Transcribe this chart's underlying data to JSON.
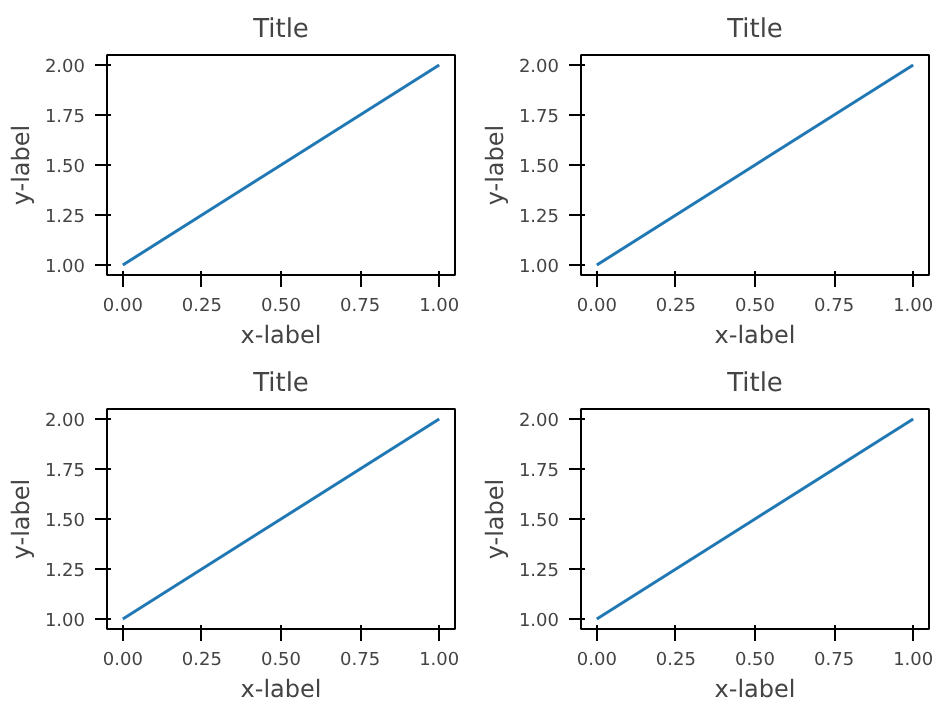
{
  "chart_data": [
    {
      "type": "line",
      "title": "Title",
      "xlabel": "x-label",
      "ylabel": "y-label",
      "x": [
        0,
        0.5,
        1
      ],
      "series": [
        {
          "color": "#1f77b4",
          "values": [
            1,
            1.5,
            2
          ]
        }
      ],
      "xlim": [
        -0.05,
        1.05
      ],
      "ylim": [
        0.95,
        2.05
      ],
      "xticks": [
        {
          "value": 0,
          "label": "0.00"
        },
        {
          "value": 0.25,
          "label": "0.25"
        },
        {
          "value": 0.5,
          "label": "0.50"
        },
        {
          "value": 0.75,
          "label": "0.75"
        },
        {
          "value": 1,
          "label": "1.00"
        }
      ],
      "yticks": [
        {
          "value": 1,
          "label": "1.00"
        },
        {
          "value": 1.25,
          "label": "1.25"
        },
        {
          "value": 1.5,
          "label": "1.50"
        },
        {
          "value": 1.75,
          "label": "1.75"
        },
        {
          "value": 2,
          "label": "2.00"
        }
      ],
      "grid": false
    },
    {
      "type": "line",
      "title": "Title",
      "xlabel": "x-label",
      "ylabel": "y-label",
      "x": [
        0,
        0.5,
        1
      ],
      "series": [
        {
          "color": "#1f77b4",
          "values": [
            1,
            1.5,
            2
          ]
        }
      ],
      "xlim": [
        -0.05,
        1.05
      ],
      "ylim": [
        0.95,
        2.05
      ],
      "xticks": [
        {
          "value": 0,
          "label": "0.00"
        },
        {
          "value": 0.25,
          "label": "0.25"
        },
        {
          "value": 0.5,
          "label": "0.50"
        },
        {
          "value": 0.75,
          "label": "0.75"
        },
        {
          "value": 1,
          "label": "1.00"
        }
      ],
      "yticks": [
        {
          "value": 1,
          "label": "1.00"
        },
        {
          "value": 1.25,
          "label": "1.25"
        },
        {
          "value": 1.5,
          "label": "1.50"
        },
        {
          "value": 1.75,
          "label": "1.75"
        },
        {
          "value": 2,
          "label": "2.00"
        }
      ],
      "grid": false
    },
    {
      "type": "line",
      "title": "Title",
      "xlabel": "x-label",
      "ylabel": "y-label",
      "x": [
        0,
        0.5,
        1
      ],
      "series": [
        {
          "color": "#1f77b4",
          "values": [
            1,
            1.5,
            2
          ]
        }
      ],
      "xlim": [
        -0.05,
        1.05
      ],
      "ylim": [
        0.95,
        2.05
      ],
      "xticks": [
        {
          "value": 0,
          "label": "0.00"
        },
        {
          "value": 0.25,
          "label": "0.25"
        },
        {
          "value": 0.5,
          "label": "0.50"
        },
        {
          "value": 0.75,
          "label": "0.75"
        },
        {
          "value": 1,
          "label": "1.00"
        }
      ],
      "yticks": [
        {
          "value": 1,
          "label": "1.00"
        },
        {
          "value": 1.25,
          "label": "1.25"
        },
        {
          "value": 1.5,
          "label": "1.50"
        },
        {
          "value": 1.75,
          "label": "1.75"
        },
        {
          "value": 2,
          "label": "2.00"
        }
      ],
      "grid": false
    },
    {
      "type": "line",
      "title": "Title",
      "xlabel": "x-label",
      "ylabel": "y-label",
      "x": [
        0,
        0.5,
        1
      ],
      "series": [
        {
          "color": "#1f77b4",
          "values": [
            1,
            1.5,
            2
          ]
        }
      ],
      "xlim": [
        -0.05,
        1.05
      ],
      "ylim": [
        0.95,
        2.05
      ],
      "xticks": [
        {
          "value": 0,
          "label": "0.00"
        },
        {
          "value": 0.25,
          "label": "0.25"
        },
        {
          "value": 0.5,
          "label": "0.50"
        },
        {
          "value": 0.75,
          "label": "0.75"
        },
        {
          "value": 1,
          "label": "1.00"
        }
      ],
      "yticks": [
        {
          "value": 1,
          "label": "1.00"
        },
        {
          "value": 1.25,
          "label": "1.25"
        },
        {
          "value": 1.5,
          "label": "1.50"
        },
        {
          "value": 1.75,
          "label": "1.75"
        },
        {
          "value": 2,
          "label": "2.00"
        }
      ],
      "grid": false
    }
  ]
}
